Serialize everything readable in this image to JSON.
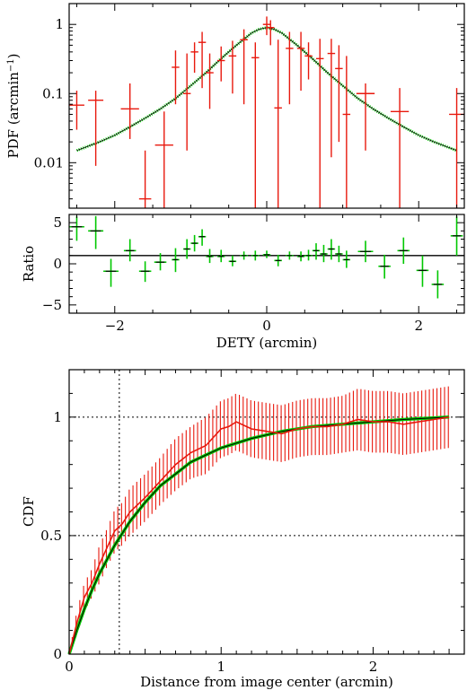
{
  "colors": {
    "data": "#e8190e",
    "model": "#00c800",
    "model_core": "#000000",
    "ratio_marker": "#00c800",
    "ratio_bar": "#000000"
  },
  "chart_data": [
    {
      "id": "pdf",
      "type": "scatter",
      "xlabel": "",
      "ylabel": "PDF (arcmin",
      "ylabel_sup": "−1",
      "ylabel_tail": ")",
      "yscale": "log",
      "xlim": [
        -2.6,
        2.6
      ],
      "ylim": [
        0.0022,
        2.0
      ],
      "yticks": [
        0.01,
        0.1,
        1
      ],
      "ytick_labels": [
        "0.01",
        "0.1",
        "1"
      ],
      "xticks": [
        -2,
        0,
        2
      ],
      "series": [
        {
          "role": "data",
          "x": [
            -2.5,
            -2.25,
            -1.8,
            -1.6,
            -1.35,
            -1.2,
            -1.05,
            -0.95,
            -0.85,
            -0.75,
            -0.6,
            -0.45,
            -0.3,
            -0.15,
            0.0,
            0.05,
            0.15,
            0.3,
            0.45,
            0.55,
            0.7,
            0.85,
            0.95,
            1.05,
            1.3,
            1.75,
            2.5
          ],
          "xerr": [
            0.1,
            0.1,
            0.12,
            0.08,
            0.12,
            0.05,
            0.05,
            0.05,
            0.05,
            0.05,
            0.05,
            0.05,
            0.05,
            0.05,
            0.05,
            0.05,
            0.05,
            0.05,
            0.05,
            0.05,
            0.05,
            0.05,
            0.05,
            0.05,
            0.12,
            0.12,
            0.1
          ],
          "y": [
            0.068,
            0.08,
            0.06,
            0.003,
            0.018,
            0.24,
            0.1,
            0.4,
            0.55,
            0.2,
            0.3,
            0.35,
            0.6,
            0.33,
            1.0,
            0.9,
            0.062,
            0.45,
            0.45,
            0.35,
            0.32,
            0.38,
            0.23,
            0.05,
            0.1,
            0.055,
            0.05
          ],
          "ylo": [
            0.03,
            0.009,
            0.022,
            0.0022,
            0.0022,
            0.07,
            0.015,
            0.2,
            0.12,
            0.06,
            0.15,
            0.1,
            0.07,
            0.0022,
            0.7,
            0.5,
            0.0022,
            0.07,
            0.11,
            0.16,
            0.0022,
            0.012,
            0.02,
            0.0022,
            0.015,
            0.0022,
            0.0022
          ],
          "yhi": [
            0.11,
            0.11,
            0.14,
            0.015,
            0.055,
            0.42,
            0.38,
            0.55,
            0.78,
            0.38,
            0.48,
            0.58,
            0.85,
            0.55,
            1.3,
            1.15,
            0.6,
            0.78,
            0.78,
            0.55,
            0.62,
            0.62,
            0.5,
            0.35,
            0.14,
            0.12,
            0.12
          ]
        },
        {
          "role": "model",
          "x": [
            -2.5,
            -2.2,
            -2.0,
            -1.8,
            -1.6,
            -1.4,
            -1.2,
            -1.0,
            -0.8,
            -0.6,
            -0.4,
            -0.2,
            -0.1,
            0.0,
            0.1,
            0.2,
            0.4,
            0.6,
            0.8,
            1.0,
            1.2,
            1.4,
            1.6,
            1.8,
            2.0,
            2.2,
            2.5
          ],
          "y": [
            0.015,
            0.02,
            0.025,
            0.033,
            0.044,
            0.06,
            0.085,
            0.13,
            0.2,
            0.32,
            0.5,
            0.75,
            0.85,
            0.9,
            0.85,
            0.75,
            0.5,
            0.32,
            0.2,
            0.13,
            0.085,
            0.06,
            0.044,
            0.033,
            0.025,
            0.02,
            0.015
          ]
        }
      ]
    },
    {
      "id": "ratio",
      "type": "scatter",
      "xlabel": "DETY (arcmin)",
      "ylabel": "Ratio",
      "xlim": [
        -2.6,
        2.6
      ],
      "ylim": [
        -6,
        6
      ],
      "yticks": [
        -5,
        0,
        5
      ],
      "ytick_labels": [
        "−5",
        "0",
        "5"
      ],
      "xticks": [
        -2,
        0,
        2
      ],
      "xtick_labels": [
        "−2",
        "0",
        "2"
      ],
      "reference_y": 1,
      "series": [
        {
          "role": "ratio",
          "x": [
            -2.5,
            -2.25,
            -2.05,
            -1.8,
            -1.6,
            -1.4,
            -1.2,
            -1.05,
            -0.95,
            -0.85,
            -0.75,
            -0.6,
            -0.45,
            -0.3,
            -0.15,
            0.0,
            0.15,
            0.3,
            0.45,
            0.55,
            0.65,
            0.75,
            0.85,
            0.95,
            1.05,
            1.3,
            1.55,
            1.8,
            2.05,
            2.25,
            2.5
          ],
          "xerr": [
            0.1,
            0.1,
            0.1,
            0.08,
            0.08,
            0.08,
            0.05,
            0.05,
            0.05,
            0.05,
            0.05,
            0.05,
            0.05,
            0.05,
            0.05,
            0.05,
            0.05,
            0.05,
            0.05,
            0.05,
            0.05,
            0.05,
            0.05,
            0.05,
            0.05,
            0.1,
            0.08,
            0.08,
            0.08,
            0.08,
            0.08
          ],
          "y": [
            4.5,
            4.0,
            -0.9,
            1.6,
            -0.9,
            0.2,
            0.5,
            1.8,
            2.5,
            3.3,
            0.9,
            0.9,
            0.3,
            1.0,
            1.0,
            1.1,
            0.4,
            1.0,
            0.9,
            1.0,
            1.6,
            1.2,
            1.8,
            1.2,
            0.5,
            1.5,
            -0.3,
            1.6,
            -0.8,
            -2.5,
            3.4
          ],
          "ylo": [
            2.8,
            1.8,
            -2.8,
            0.3,
            -2.2,
            -0.8,
            -1.0,
            0.6,
            1.5,
            2.2,
            0.1,
            0.2,
            -0.3,
            0.5,
            0.4,
            0.7,
            -0.3,
            0.5,
            0.3,
            0.4,
            0.5,
            0.2,
            0.5,
            0.2,
            -0.5,
            0.2,
            -1.8,
            0.0,
            -2.8,
            -4.2,
            1.0
          ],
          "yhi": [
            5.8,
            5.8,
            0.6,
            3.0,
            0.3,
            1.3,
            1.9,
            3.0,
            3.5,
            4.2,
            1.8,
            1.7,
            1.0,
            1.5,
            1.6,
            1.6,
            1.1,
            1.5,
            1.5,
            1.7,
            2.5,
            2.3,
            3.0,
            2.2,
            1.6,
            2.8,
            1.1,
            3.2,
            1.0,
            -0.8,
            5.8
          ]
        }
      ]
    },
    {
      "id": "cdf",
      "type": "line",
      "xlabel": "Distance from image center (arcmin)",
      "ylabel": "CDF",
      "xlim": [
        0,
        2.6
      ],
      "ylim": [
        0,
        1.2
      ],
      "xticks": [
        0,
        1,
        2
      ],
      "xtick_labels": [
        "0",
        "1",
        "2"
      ],
      "yticks": [
        0,
        0.5,
        1
      ],
      "ytick_labels": [
        "0",
        "0.5",
        "1"
      ],
      "guide_x": 0.33,
      "guide_y": [
        0.5,
        1.0
      ],
      "series": [
        {
          "role": "data",
          "x": [
            0.0,
            0.05,
            0.1,
            0.15,
            0.2,
            0.25,
            0.3,
            0.35,
            0.4,
            0.5,
            0.6,
            0.7,
            0.8,
            0.9,
            1.0,
            1.05,
            1.1,
            1.2,
            1.3,
            1.4,
            1.5,
            1.6,
            1.7,
            1.8,
            1.9,
            2.0,
            2.1,
            2.2,
            2.3,
            2.4,
            2.5
          ],
          "y": [
            0.0,
            0.13,
            0.24,
            0.3,
            0.38,
            0.45,
            0.52,
            0.55,
            0.6,
            0.66,
            0.73,
            0.8,
            0.85,
            0.88,
            0.95,
            0.96,
            0.98,
            0.95,
            0.94,
            0.93,
            0.95,
            0.96,
            0.96,
            0.97,
            0.99,
            0.98,
            0.98,
            0.97,
            0.98,
            0.99,
            1.0
          ],
          "err": [
            0.0,
            0.05,
            0.06,
            0.06,
            0.08,
            0.08,
            0.09,
            0.09,
            0.1,
            0.1,
            0.1,
            0.11,
            0.11,
            0.12,
            0.12,
            0.12,
            0.12,
            0.12,
            0.12,
            0.12,
            0.12,
            0.12,
            0.12,
            0.12,
            0.13,
            0.13,
            0.13,
            0.13,
            0.13,
            0.13,
            0.13
          ]
        },
        {
          "role": "model",
          "x": [
            0.0,
            0.05,
            0.1,
            0.15,
            0.2,
            0.3,
            0.4,
            0.5,
            0.6,
            0.7,
            0.8,
            0.9,
            1.0,
            1.2,
            1.4,
            1.6,
            1.8,
            2.0,
            2.2,
            2.5
          ],
          "y": [
            0.0,
            0.1,
            0.19,
            0.27,
            0.34,
            0.46,
            0.56,
            0.64,
            0.71,
            0.76,
            0.81,
            0.84,
            0.87,
            0.91,
            0.94,
            0.96,
            0.97,
            0.98,
            0.99,
            1.0
          ]
        }
      ]
    }
  ]
}
